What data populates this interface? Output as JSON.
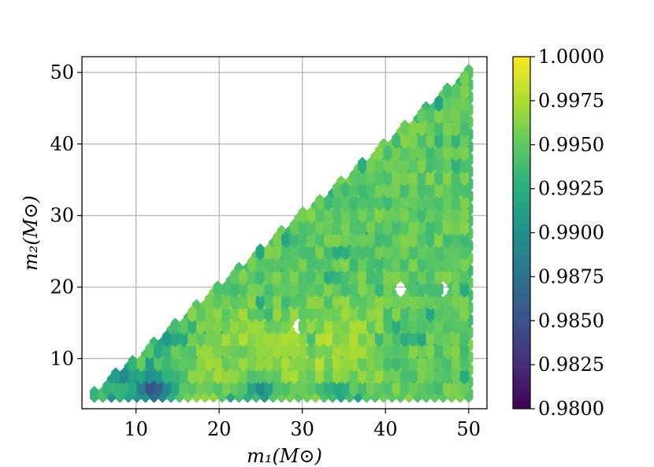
{
  "chart_data": {
    "type": "heatmap",
    "subtype": "hexbin",
    "title": "",
    "xlabel": "m₁(M⊙)",
    "ylabel": "m₂(M⊙)",
    "xlim": [
      3.5,
      52.2
    ],
    "ylim": [
      3.0,
      52.2
    ],
    "xticks": [
      10,
      20,
      30,
      40,
      50
    ],
    "yticks": [
      10,
      20,
      30,
      40,
      50
    ],
    "grid": true,
    "colormap": "viridis",
    "colorbar": {
      "min": 0.98,
      "max": 1.0,
      "ticks": [
        "0.9800",
        "0.9825",
        "0.9850",
        "0.9875",
        "0.9900",
        "0.9925",
        "0.9950",
        "0.9975",
        "1.0000"
      ]
    },
    "hex_grid": {
      "x_start": 5,
      "x_end": 50,
      "nx": 44,
      "y_start": 5,
      "y_end": 50,
      "ny": 26
    },
    "region": "m2 <= m1",
    "typical_value": 0.995,
    "low_value_clusters": [
      {
        "m1": 12.0,
        "m2": 6.0,
        "value": 0.986
      },
      {
        "m1": 7.5,
        "m2": 7.5,
        "value": 0.99
      },
      {
        "m1": 13.0,
        "m2": 12.5,
        "value": 0.991
      },
      {
        "m1": 25.0,
        "m2": 5.5,
        "value": 0.991
      },
      {
        "m1": 34.5,
        "m2": 5.0,
        "value": 0.991
      }
    ],
    "high_value_region": {
      "m1": [
        8,
        40
      ],
      "m2": [
        5,
        18
      ],
      "value": 0.997
    },
    "empty_cells": [
      {
        "m1": 29.4,
        "m2": 14.5
      },
      {
        "m1": 41.8,
        "m2": 19.7
      },
      {
        "m1": 47.2,
        "m2": 19.7
      }
    ]
  }
}
